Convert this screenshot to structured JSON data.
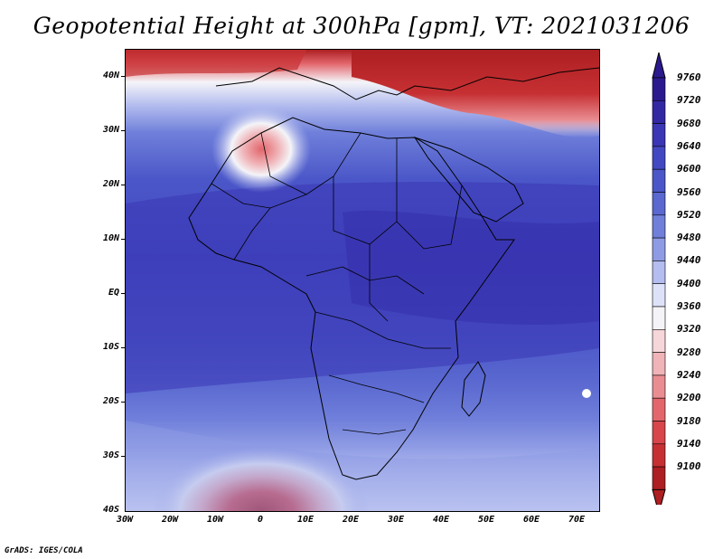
{
  "title": "Geopotential Height at 300hPa [gpm], VT: 2021031206",
  "credit": "GrADS: IGES/COLA",
  "lat_labels": [
    "40N",
    "30N",
    "20N",
    "10N",
    "EQ",
    "10S",
    "20S",
    "30S",
    "40S"
  ],
  "lon_labels": [
    "30W",
    "20W",
    "10W",
    "0",
    "10E",
    "20E",
    "30E",
    "40E",
    "50E",
    "60E",
    "70E"
  ],
  "colorbar": {
    "labels": [
      "9760",
      "9720",
      "9680",
      "9640",
      "9600",
      "9560",
      "9520",
      "9480",
      "9440",
      "9400",
      "9360",
      "9320",
      "9280",
      "9240",
      "9200",
      "9180",
      "9140",
      "9100"
    ],
    "colors": [
      "#2b1a8e",
      "#3328a4",
      "#3a36b5",
      "#4348c2",
      "#4b57c8",
      "#5a68d0",
      "#6f7fda",
      "#8e9be4",
      "#b4bdef",
      "#dde2f8",
      "#f4f4f8",
      "#f6d6d9",
      "#f0b3b7",
      "#e98d92",
      "#e2666c",
      "#d8454a",
      "#c63033",
      "#ad1f22"
    ]
  },
  "features": {
    "height_high_label": "high heights (blue) over tropics",
    "low_centers": [
      "North Africa trough",
      "South Atlantic low (40S,0)"
    ]
  }
}
